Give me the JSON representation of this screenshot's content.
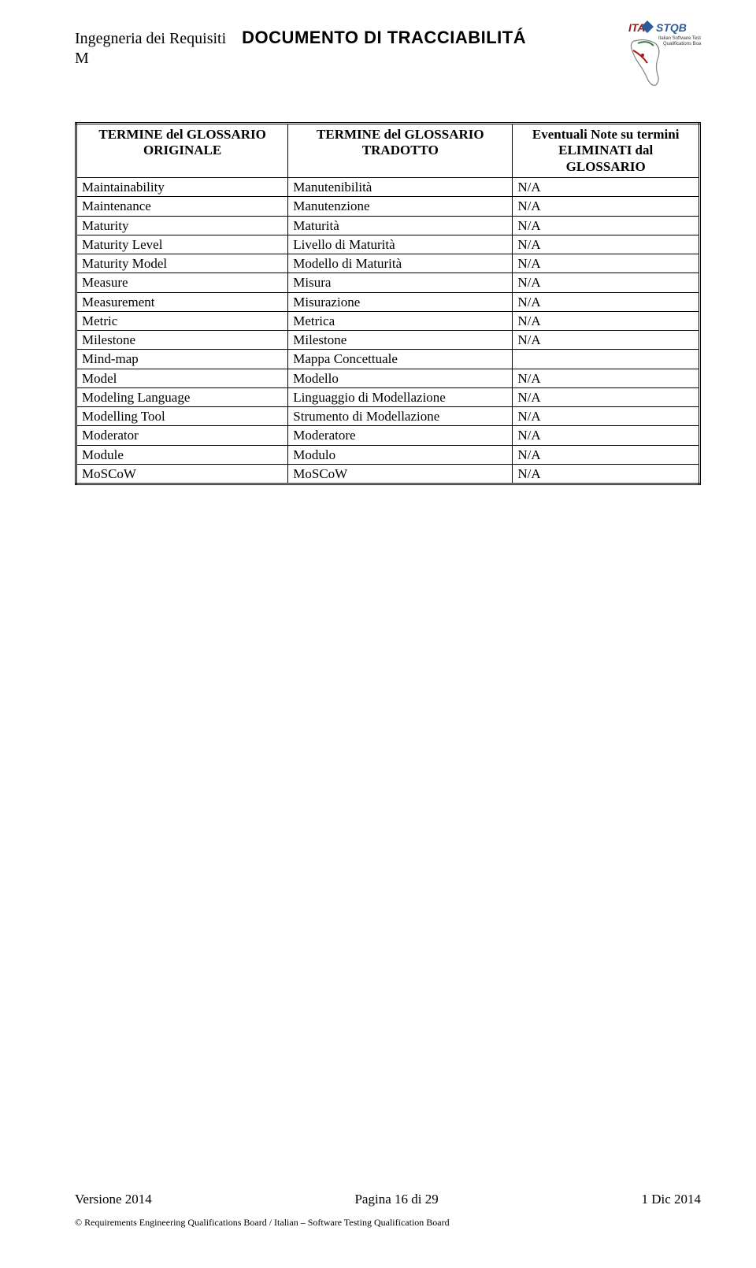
{
  "header": {
    "subject": "Ingegneria dei Requisiti",
    "title": "DOCUMENTO DI TRACCIABILITÁ",
    "section_letter": "M"
  },
  "table": {
    "headers": {
      "col1_line1": "TERMINE del GLOSSARIO",
      "col1_line2": "ORIGINALE",
      "col2_line1": "TERMINE del GLOSSARIO",
      "col2_line2": "TRADOTTO",
      "col3_line1": "Eventuali Note su termini",
      "col3_line2": "ELIMINATI dal GLOSSARIO"
    },
    "rows": [
      {
        "orig": "Maintainability",
        "trans": "Manutenibilità",
        "note": "N/A"
      },
      {
        "orig": "Maintenance",
        "trans": "Manutenzione",
        "note": "N/A"
      },
      {
        "orig": "Maturity",
        "trans": "Maturità",
        "note": "N/A"
      },
      {
        "orig": "Maturity Level",
        "trans": "Livello di Maturità",
        "note": "N/A"
      },
      {
        "orig": "Maturity Model",
        "trans": "Modello di Maturità",
        "note": "N/A"
      },
      {
        "orig": "Measure",
        "trans": "Misura",
        "note": "N/A"
      },
      {
        "orig": "Measurement",
        "trans": "Misurazione",
        "note": "N/A"
      },
      {
        "orig": "Metric",
        "trans": "Metrica",
        "note": "N/A"
      },
      {
        "orig": "Milestone",
        "trans": "Milestone",
        "note": "N/A"
      },
      {
        "orig": "Mind-map",
        "trans": "Mappa Concettuale",
        "note": ""
      },
      {
        "orig": "Model",
        "trans": "Modello",
        "note": "N/A"
      },
      {
        "orig": "Modeling Language",
        "trans": "Linguaggio di Modellazione",
        "note": "N/A"
      },
      {
        "orig": "Modelling Tool",
        "trans": "Strumento di Modellazione",
        "note": "N/A"
      },
      {
        "orig": "Moderator",
        "trans": "Moderatore",
        "note": "N/A"
      },
      {
        "orig": "Module",
        "trans": "Modulo",
        "note": "N/A"
      },
      {
        "orig": "MoSCoW",
        "trans": "MoSCoW",
        "note": "N/A"
      }
    ]
  },
  "footer": {
    "version": "Versione 2014",
    "page": "Pagina 16 di 29",
    "date": "1 Dic 2014",
    "copyright": "© Requirements Engineering Qualifications Board / Italian – Software Testing Qualification Board"
  },
  "logo": {
    "ita_text": "ITA",
    "stqb_text": "STQB",
    "subtitle": "Italian Software Testing",
    "subtitle2": "Qualifications Board",
    "colors": {
      "red": "#a01818",
      "blue": "#2a5c9a",
      "green": "#3d7a3d",
      "gray": "#808080"
    }
  }
}
